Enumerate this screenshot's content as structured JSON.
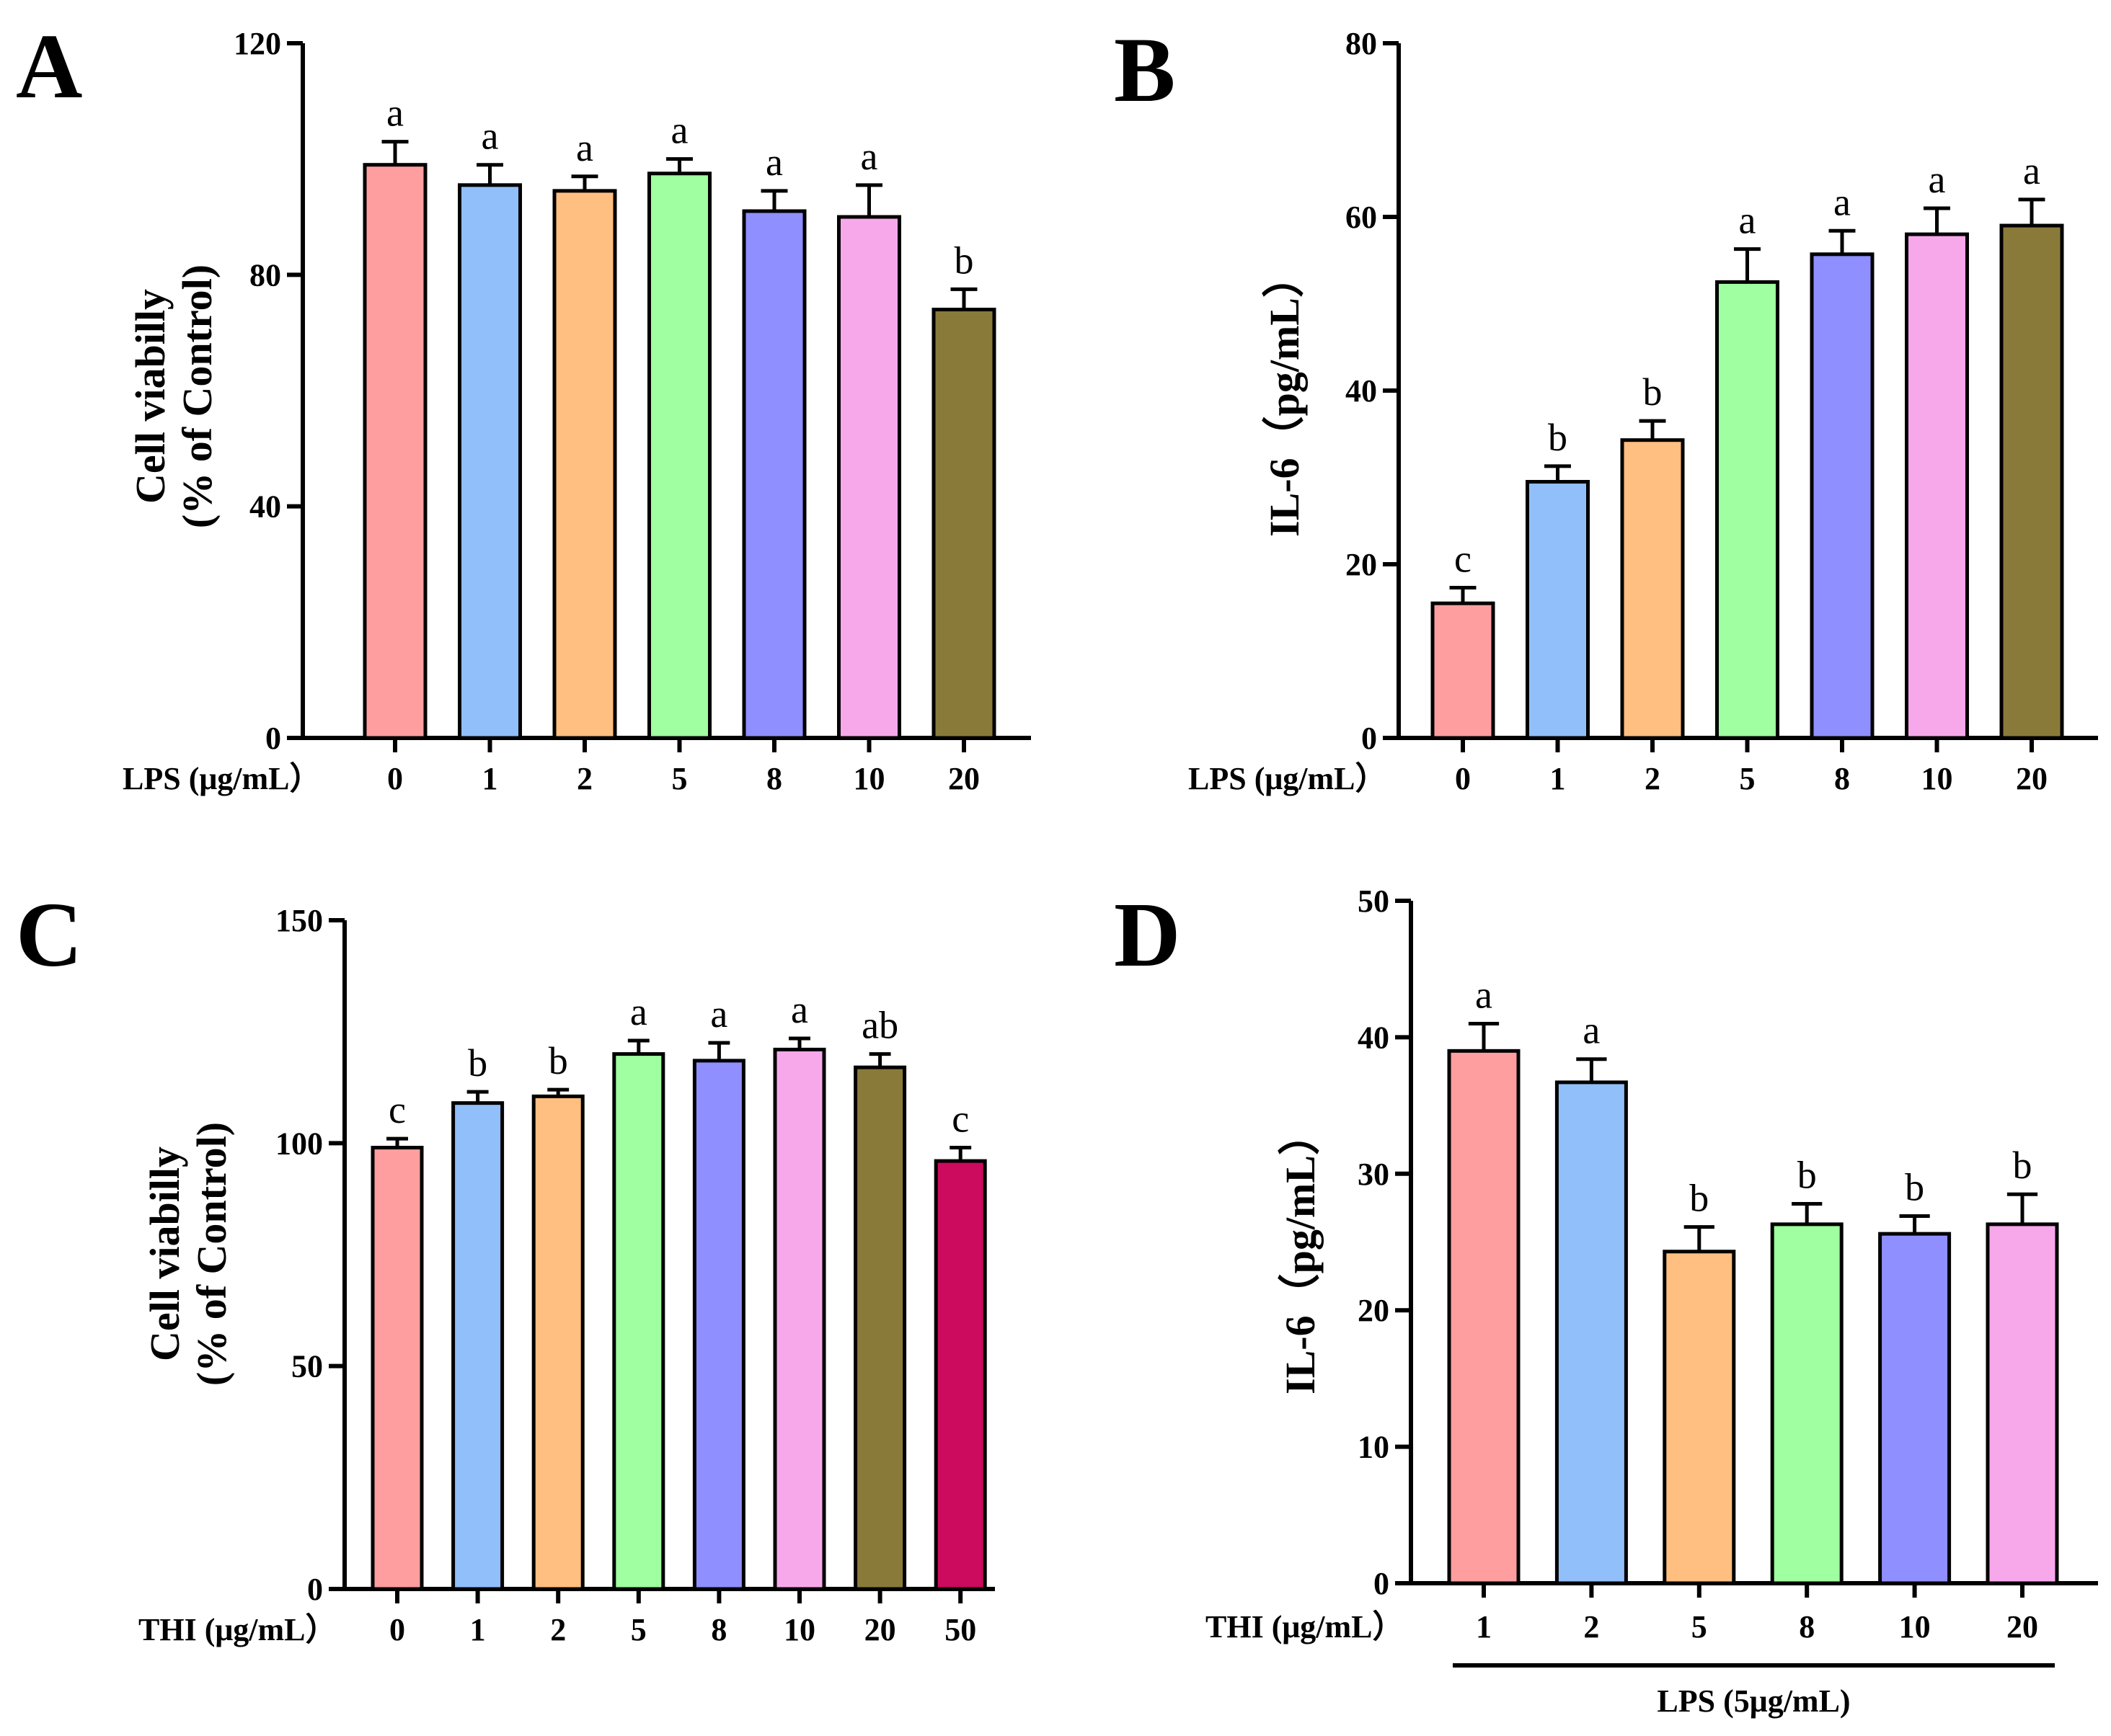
{
  "chart_data": [
    {
      "panel": "A",
      "type": "bar",
      "ylabel_line1": "Cell viabilly",
      "ylabel_line2": "(% of Control)",
      "xlabel": "LPS (μg/mL）",
      "categories": [
        "0",
        "1",
        "2",
        "5",
        "8",
        "10",
        "20"
      ],
      "values": [
        99,
        95.5,
        94.5,
        97.5,
        91,
        90,
        74
      ],
      "errors": [
        4,
        3.5,
        2.5,
        2.5,
        3.5,
        5.5,
        3.5
      ],
      "significance": [
        "a",
        "a",
        "a",
        "a",
        "a",
        "a",
        "b"
      ],
      "colors": [
        "#FF9E9E",
        "#91BFFA",
        "#FFBF80",
        "#A0FFA0",
        "#8F8FFF",
        "#F7A8EB",
        "#8A7A3A"
      ],
      "ylim": [
        0,
        120
      ],
      "yticks": [
        "0",
        "40",
        "80",
        "120"
      ]
    },
    {
      "panel": "B",
      "type": "bar",
      "ylabel_line1": "IL-6（pg/mL）",
      "ylabel_line2": "",
      "xlabel": "LPS (μg/mL）",
      "categories": [
        "0",
        "1",
        "2",
        "5",
        "8",
        "10",
        "20"
      ],
      "values": [
        15.5,
        29.5,
        34.3,
        52.5,
        55.7,
        58,
        59
      ],
      "errors": [
        1.8,
        1.8,
        2.2,
        3.8,
        2.7,
        3,
        3
      ],
      "significance": [
        "c",
        "b",
        "b",
        "a",
        "a",
        "a",
        "a"
      ],
      "colors": [
        "#FF9E9E",
        "#91BFFA",
        "#FFBF80",
        "#A0FFA0",
        "#8F8FFF",
        "#F7A8EB",
        "#8A7A3A"
      ],
      "ylim": [
        0,
        80
      ],
      "yticks": [
        "0",
        "20",
        "40",
        "60",
        "80"
      ]
    },
    {
      "panel": "C",
      "type": "bar",
      "ylabel_line1": "Cell viabilly",
      "ylabel_line2": "(% of Control)",
      "xlabel": "THI  (μg/mL）",
      "categories": [
        "0",
        "1",
        "2",
        "5",
        "8",
        "10",
        "20",
        "50"
      ],
      "values": [
        99,
        109,
        110.5,
        120,
        118.5,
        121,
        117,
        96
      ],
      "errors": [
        2,
        2.5,
        1.5,
        3,
        4,
        2.5,
        3,
        3
      ],
      "significance": [
        "c",
        "b",
        "b",
        "a",
        "a",
        "a",
        "ab",
        "c"
      ],
      "colors": [
        "#FF9E9E",
        "#91BFFA",
        "#FFBF80",
        "#A0FFA0",
        "#8F8FFF",
        "#F7A8EB",
        "#8A7A3A",
        "#CC0A5E"
      ],
      "ylim": [
        0,
        150
      ],
      "yticks": [
        "0",
        "50",
        "100",
        "150"
      ]
    },
    {
      "panel": "D",
      "type": "bar",
      "ylabel_line1": "IL-6（pg/mL）",
      "ylabel_line2": "",
      "xlabel": "THI (μg/mL）",
      "group_label": "LPS (5μg/mL)",
      "categories": [
        "1",
        "2",
        "5",
        "8",
        "10",
        "20"
      ],
      "values": [
        39,
        36.7,
        24.3,
        26.3,
        25.6,
        26.3
      ],
      "errors": [
        2,
        1.7,
        1.8,
        1.5,
        1.3,
        2.2
      ],
      "significance": [
        "a",
        "a",
        "b",
        "b",
        "b",
        "b"
      ],
      "colors": [
        "#FF9E9E",
        "#91BFFA",
        "#FFBF80",
        "#A0FFA0",
        "#8F8FFF",
        "#F7A8EB"
      ],
      "ylim": [
        0,
        50
      ],
      "yticks": [
        "0",
        "10",
        "20",
        "30",
        "40",
        "50"
      ]
    }
  ]
}
